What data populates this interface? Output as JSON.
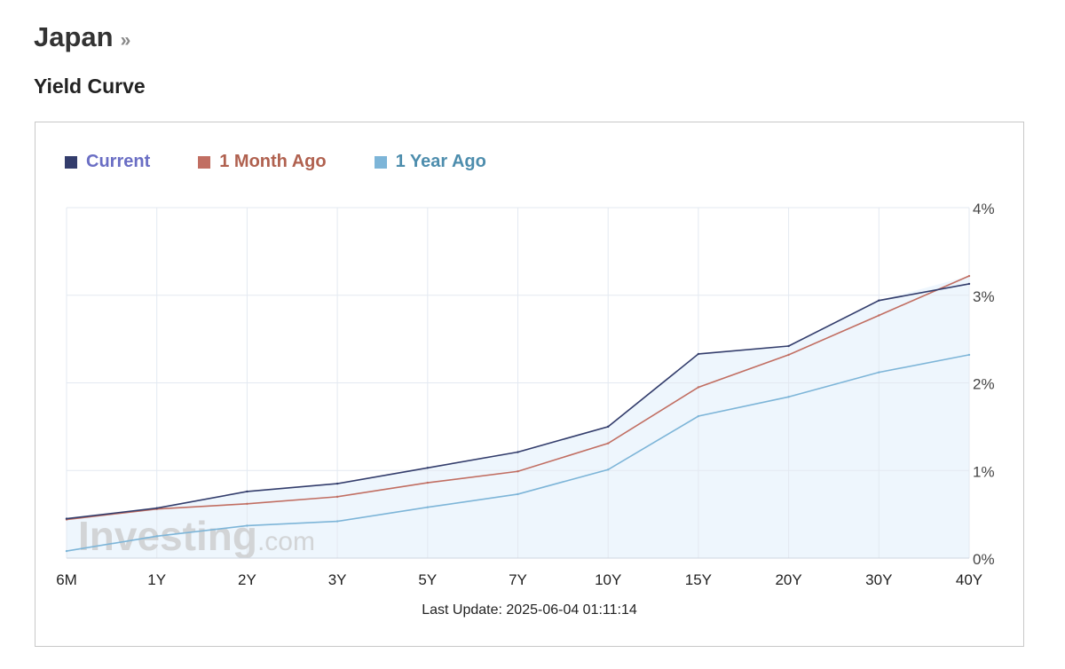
{
  "header": {
    "country": "Japan",
    "chevron": "»"
  },
  "section_title": "Yield Curve",
  "legend": [
    {
      "label": "Current",
      "swatch": "#333d6c",
      "text_color": "#6a6ec4"
    },
    {
      "label": "1 Month Ago",
      "swatch": "#c16e62",
      "text_color": "#b0614f"
    },
    {
      "label": "1 Year Ago",
      "swatch": "#7db5d8",
      "text_color": "#4d8dad"
    }
  ],
  "watermark": {
    "main": "Investing",
    "suffix": ".com"
  },
  "last_update": "Last Update: 2025-06-04 01:11:14",
  "chart_data": {
    "type": "line",
    "categories": [
      "6M",
      "1Y",
      "2Y",
      "3Y",
      "5Y",
      "7Y",
      "10Y",
      "15Y",
      "20Y",
      "30Y",
      "40Y"
    ],
    "y_ticks": [
      "0%",
      "1%",
      "2%",
      "3%",
      "4%"
    ],
    "ylim": [
      0,
      4
    ],
    "y_axis_side": "right",
    "grid": true,
    "legend_position": "top-left",
    "series": [
      {
        "name": "Current",
        "color": "#333d6c",
        "values": [
          0.45,
          0.57,
          0.76,
          0.85,
          1.03,
          1.21,
          1.5,
          2.33,
          2.42,
          2.94,
          3.13
        ]
      },
      {
        "name": "1 Month Ago",
        "color": "#c16e62",
        "values": [
          0.44,
          0.56,
          0.62,
          0.7,
          0.86,
          0.99,
          1.31,
          1.95,
          2.32,
          2.77,
          3.22
        ]
      },
      {
        "name": "1 Year Ago",
        "color": "#7db5d8",
        "values": [
          0.08,
          0.25,
          0.37,
          0.42,
          0.58,
          0.73,
          1.01,
          1.62,
          1.84,
          2.12,
          2.32
        ]
      }
    ],
    "area_fill": "#eef6fd"
  }
}
